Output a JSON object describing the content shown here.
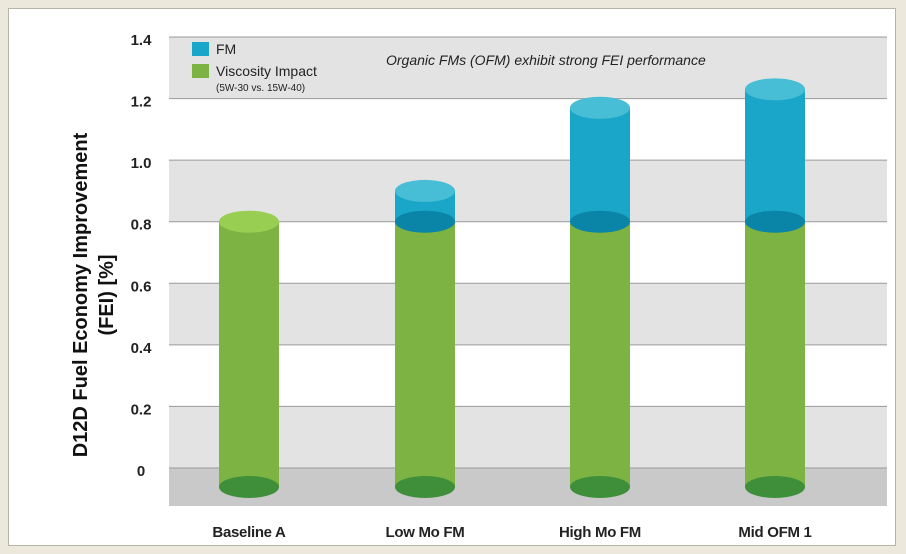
{
  "chart_data": {
    "type": "bar",
    "stacked": true,
    "categories": [
      "Baseline A",
      "Low Mo FM",
      "High Mo FM",
      "Mid OFM 1"
    ],
    "series": [
      {
        "name": "Viscosity Impact",
        "values": [
          0.8,
          0.8,
          0.8,
          0.8
        ],
        "color": "#7cb342"
      },
      {
        "name": "FM",
        "values": [
          0.0,
          0.1,
          0.37,
          0.43
        ],
        "color": "#1aa6c8"
      }
    ],
    "legend_sub": "(5W-30 vs. 15W-40)",
    "legend_position": "top-left",
    "annotation": "Organic FMs (OFM) exhibit strong FEI performance",
    "ylabel_line1": "D12D Fuel Economy Improvement",
    "ylabel_line2": "(FEI) [%]",
    "xlabel": "",
    "y_ticks": [
      "0",
      "0.2",
      "0.4",
      "0.6",
      "0.8",
      "1.0",
      "1.2",
      "1.4"
    ],
    "ylim": [
      0,
      1.4
    ],
    "grid": "alternating bands",
    "style": "3D cylinders"
  }
}
